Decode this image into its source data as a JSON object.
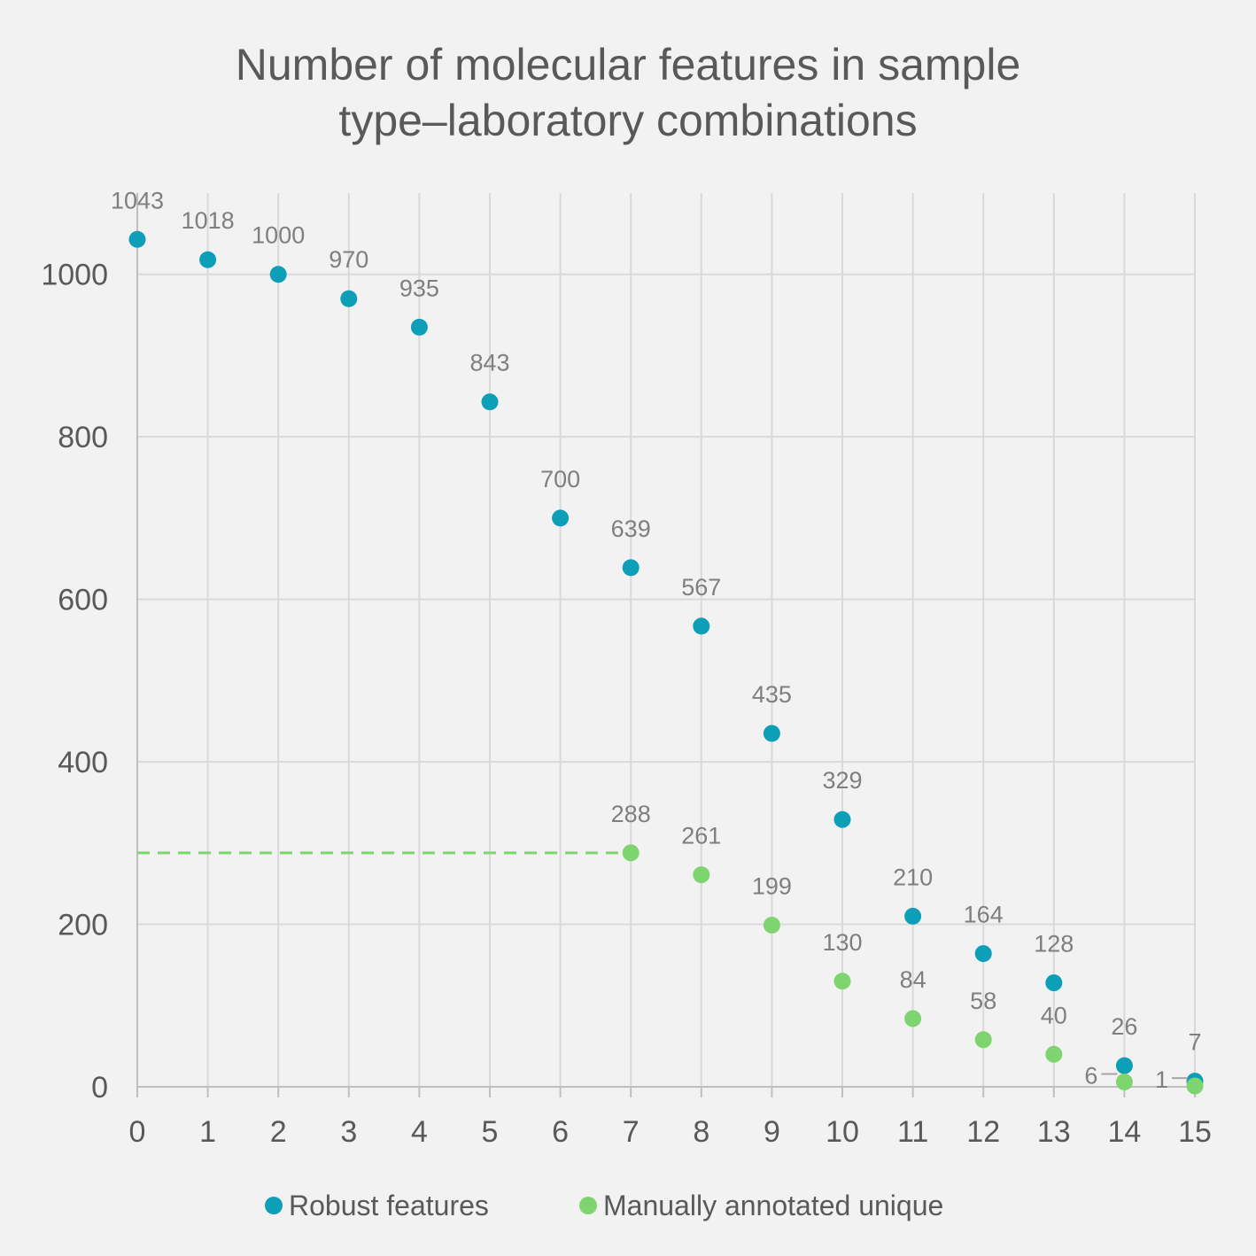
{
  "chart_data": {
    "type": "scatter",
    "title_lines": [
      "Number of molecular features in sample",
      "type–laboratory combinations"
    ],
    "xlim": [
      0,
      15
    ],
    "ylim": [
      0,
      1100
    ],
    "x_ticks": [
      0,
      1,
      2,
      3,
      4,
      5,
      6,
      7,
      8,
      9,
      10,
      11,
      12,
      13,
      14,
      15
    ],
    "y_ticks": [
      0,
      200,
      400,
      600,
      800,
      1000
    ],
    "grid": true,
    "legend_position": "bottom",
    "series": [
      {
        "name": "Robust features",
        "color": "#0e9fb8",
        "x": [
          0,
          1,
          2,
          3,
          4,
          5,
          6,
          7,
          8,
          9,
          10,
          11,
          12,
          13,
          14,
          15
        ],
        "y": [
          1043,
          1018,
          1000,
          970,
          935,
          843,
          700,
          639,
          567,
          435,
          329,
          210,
          164,
          128,
          26,
          7
        ]
      },
      {
        "name": "Manually annotated unique",
        "color": "#7ed56f",
        "x": [
          7,
          8,
          9,
          10,
          11,
          12,
          13,
          14,
          15
        ],
        "y": [
          288,
          261,
          199,
          130,
          84,
          58,
          40,
          6,
          1
        ]
      }
    ],
    "reference_line": {
      "y": 288,
      "x_from": 0,
      "x_to": 7,
      "color": "#7ed56f",
      "style": "dashed"
    }
  }
}
